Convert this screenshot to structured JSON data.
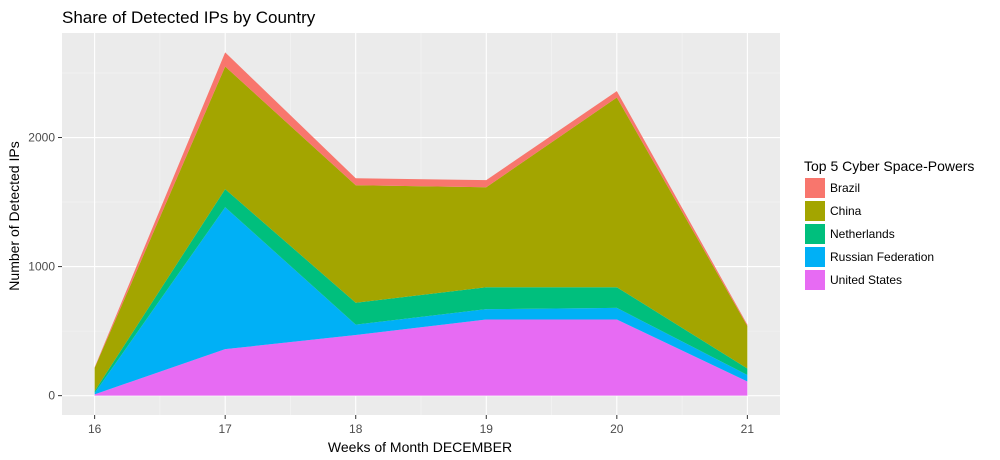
{
  "chart_data": {
    "type": "area",
    "stacked": true,
    "title": "Share of Detected IPs by Country",
    "xlabel": "Weeks of Month DECEMBER",
    "ylabel": "Number of Detected IPs",
    "x": [
      16,
      17,
      18,
      19,
      20,
      21
    ],
    "xlim": [
      15.75,
      21.25
    ],
    "ylim": [
      -150,
      2810
    ],
    "xticks": [
      "16",
      "17",
      "18",
      "19",
      "20",
      "21"
    ],
    "yticks": [
      "0",
      "1000",
      "2000"
    ],
    "grid": true,
    "legend_title": "Top 5 Cyber Space-Powers",
    "legend_position": "right",
    "series": [
      {
        "name": "Brazil",
        "color": "#F8766D",
        "values": [
          5,
          110,
          55,
          55,
          50,
          10
        ]
      },
      {
        "name": "China",
        "color": "#A3A500",
        "values": [
          180,
          950,
          910,
          775,
          1470,
          330
        ]
      },
      {
        "name": "Netherlands",
        "color": "#00BF7D",
        "values": [
          15,
          140,
          170,
          170,
          160,
          50
        ]
      },
      {
        "name": "Russian Federation",
        "color": "#00B0F6",
        "values": [
          10,
          1100,
          80,
          80,
          90,
          50
        ]
      },
      {
        "name": "United States",
        "color": "#E76BF3",
        "values": [
          10,
          360,
          470,
          590,
          590,
          110
        ]
      }
    ]
  }
}
